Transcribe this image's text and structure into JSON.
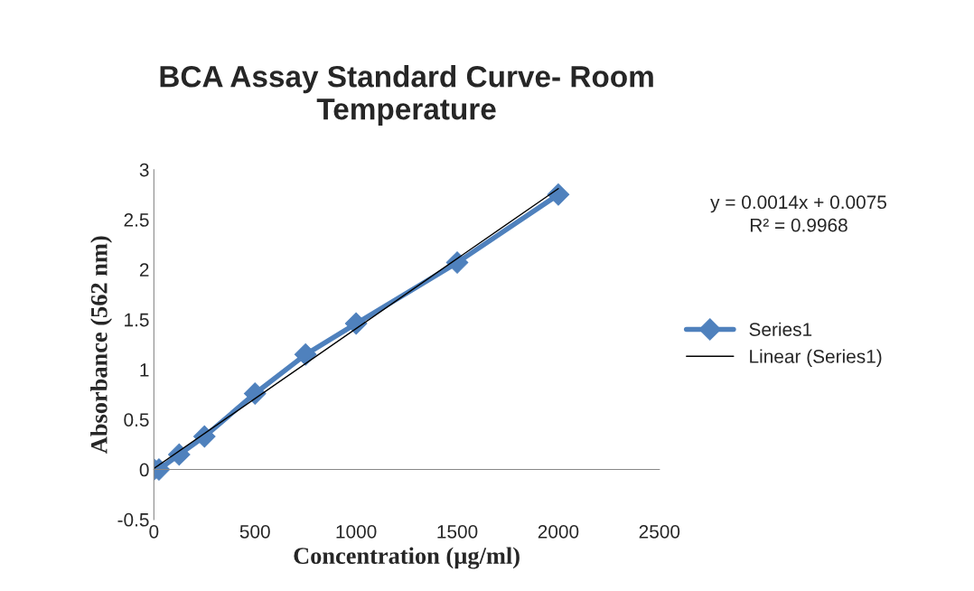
{
  "chart_data": {
    "type": "line",
    "title": "BCA Assay Standard Curve- Room\nTemperature",
    "xlabel": "Concentration (µg/ml)",
    "ylabel": "Absorbance (562 nm)",
    "x": [
      0,
      25,
      125,
      250,
      500,
      750,
      1000,
      1500,
      2000
    ],
    "series": [
      {
        "name": "Series1",
        "color": "#4f81bd",
        "marker": "diamond",
        "values": [
          0,
          0,
          0.15,
          0.33,
          0.76,
          1.15,
          1.46,
          2.07,
          2.75
        ]
      },
      {
        "name": "Linear (Series1)",
        "color": "#000000",
        "marker": "none",
        "x": [
          0,
          2000
        ],
        "values": [
          0.01,
          2.81
        ]
      }
    ],
    "xlim": [
      0,
      2500
    ],
    "xticks": [
      0,
      500,
      1000,
      1500,
      2000,
      2500
    ],
    "ylim": [
      -0.5,
      3
    ],
    "yticks": [
      -0.5,
      0,
      0.5,
      1,
      1.5,
      2,
      2.5,
      3
    ],
    "annotations": [
      "y = 0.0014x + 0.0075\nR² = 0.9968"
    ],
    "legend": "right"
  }
}
